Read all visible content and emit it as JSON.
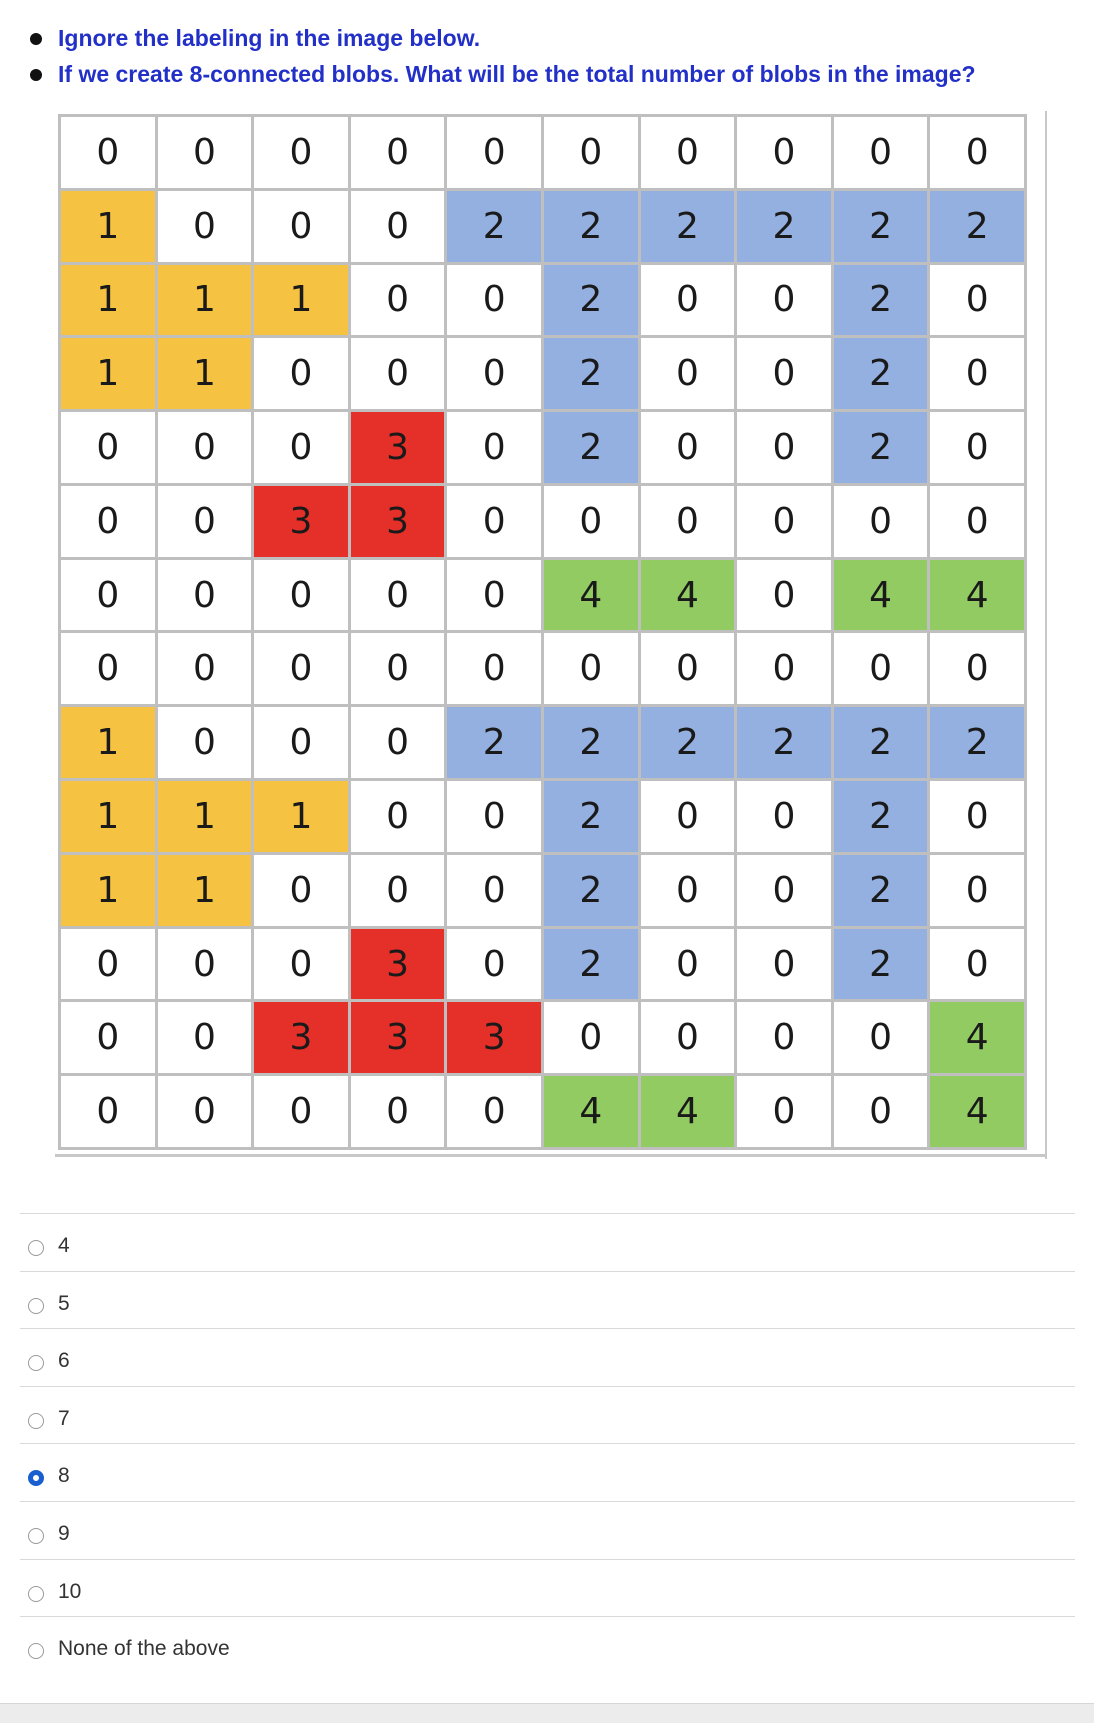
{
  "question": {
    "lines": [
      "Ignore the labeling in the image below.",
      "If we create  8-connected blobs. What will be the total number of blobs in the image?"
    ]
  },
  "grid": {
    "rows": [
      [
        0,
        0,
        0,
        0,
        0,
        0,
        0,
        0,
        0,
        0
      ],
      [
        1,
        0,
        0,
        0,
        2,
        2,
        2,
        2,
        2,
        2
      ],
      [
        1,
        1,
        1,
        0,
        0,
        2,
        0,
        0,
        2,
        0
      ],
      [
        1,
        1,
        0,
        0,
        0,
        2,
        0,
        0,
        2,
        0
      ],
      [
        0,
        0,
        0,
        3,
        0,
        2,
        0,
        0,
        2,
        0
      ],
      [
        0,
        0,
        3,
        3,
        0,
        0,
        0,
        0,
        0,
        0
      ],
      [
        0,
        0,
        0,
        0,
        0,
        4,
        4,
        0,
        4,
        4
      ],
      [
        0,
        0,
        0,
        0,
        0,
        0,
        0,
        0,
        0,
        0
      ],
      [
        1,
        0,
        0,
        0,
        2,
        2,
        2,
        2,
        2,
        2
      ],
      [
        1,
        1,
        1,
        0,
        0,
        2,
        0,
        0,
        2,
        0
      ],
      [
        1,
        1,
        0,
        0,
        0,
        2,
        0,
        0,
        2,
        0
      ],
      [
        0,
        0,
        0,
        3,
        0,
        2,
        0,
        0,
        2,
        0
      ],
      [
        0,
        0,
        3,
        3,
        3,
        0,
        0,
        0,
        0,
        4
      ],
      [
        0,
        0,
        0,
        0,
        0,
        4,
        4,
        0,
        0,
        4
      ]
    ],
    "colors": {
      "0": "#ffffff",
      "1": "#f5c242",
      "2": "#94b0e0",
      "3": "#e5302a",
      "4": "#92cb62"
    }
  },
  "options": [
    {
      "label": "4",
      "selected": false
    },
    {
      "label": "5",
      "selected": false
    },
    {
      "label": "6",
      "selected": false
    },
    {
      "label": "7",
      "selected": false
    },
    {
      "label": "8",
      "selected": true
    },
    {
      "label": "9",
      "selected": false
    },
    {
      "label": "10",
      "selected": false
    },
    {
      "label": "None of the above",
      "selected": false
    }
  ]
}
